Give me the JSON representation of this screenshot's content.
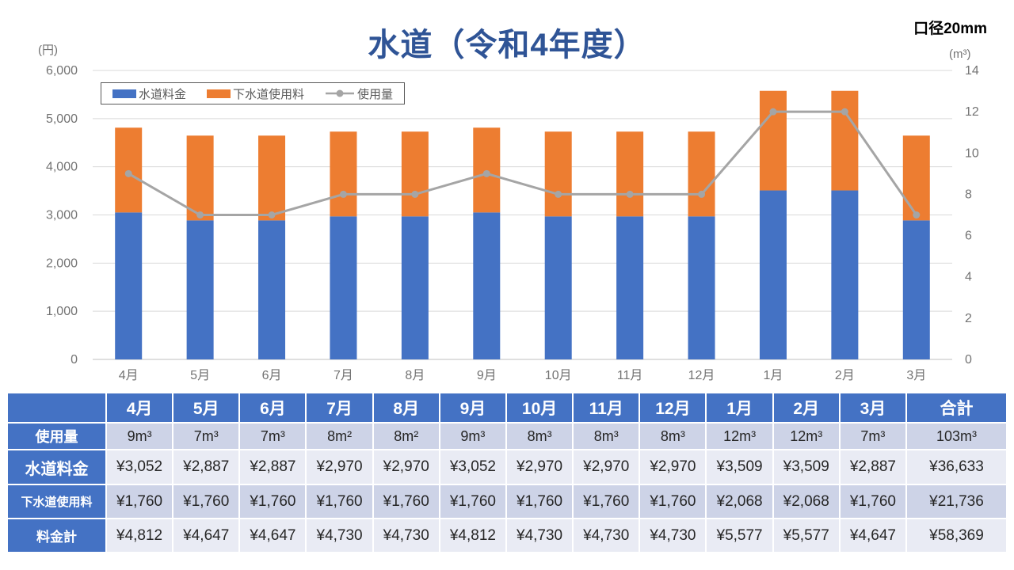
{
  "header": {
    "title": "水道（令和4年度）",
    "caliber_note": "口径20mm"
  },
  "chart_data": {
    "type": "bar",
    "subtype": "stacked-bars-with-line",
    "title": "水道（令和4年度）",
    "categories": [
      "4月",
      "5月",
      "6月",
      "7月",
      "8月",
      "9月",
      "10月",
      "11月",
      "12月",
      "1月",
      "2月",
      "3月"
    ],
    "series": [
      {
        "name": "水道料金",
        "type": "bar",
        "axis": "left",
        "color": "#4472C4",
        "values": [
          3052,
          2887,
          2887,
          2970,
          2970,
          3052,
          2970,
          2970,
          2970,
          3509,
          3509,
          2887
        ]
      },
      {
        "name": "下水道使用料",
        "type": "bar",
        "axis": "left",
        "color": "#ED7D31",
        "values": [
          1760,
          1760,
          1760,
          1760,
          1760,
          1760,
          1760,
          1760,
          1760,
          2068,
          2068,
          1760
        ]
      },
      {
        "name": "使用量",
        "type": "line",
        "axis": "right",
        "color": "#A5A5A5",
        "values": [
          9,
          7,
          7,
          8,
          8,
          9,
          8,
          8,
          8,
          12,
          12,
          7
        ]
      }
    ],
    "left_axis": {
      "unit_label": "(円)",
      "min": 0,
      "max": 6000,
      "step": 1000,
      "ticks": [
        "0",
        "1,000",
        "2,000",
        "3,000",
        "4,000",
        "5,000",
        "6,000"
      ]
    },
    "right_axis": {
      "unit_label": "(m³)",
      "min": 0,
      "max": 14,
      "step": 2,
      "ticks": [
        "0",
        "2",
        "4",
        "6",
        "8",
        "10",
        "12",
        "14"
      ]
    },
    "legend": {
      "position": "top-left-inside",
      "entries": [
        "水道料金",
        "下水道使用料",
        "使用量"
      ]
    },
    "grid": true
  },
  "table": {
    "corner_label": "",
    "columns": [
      "4月",
      "5月",
      "6月",
      "7月",
      "8月",
      "9月",
      "10月",
      "11月",
      "12月",
      "1月",
      "2月",
      "3月",
      "合計"
    ],
    "rows": [
      {
        "label": "使用量",
        "cells": [
          "9m³",
          "7m³",
          "7m³",
          "8m²",
          "8m²",
          "9m³",
          "8m³",
          "8m³",
          "8m³",
          "12m³",
          "12m³",
          "7m³",
          "103m³"
        ]
      },
      {
        "label": "水道料金",
        "cells": [
          "¥3,052",
          "¥2,887",
          "¥2,887",
          "¥2,970",
          "¥2,970",
          "¥3,052",
          "¥2,970",
          "¥2,970",
          "¥2,970",
          "¥3,509",
          "¥3,509",
          "¥2,887",
          "¥36,633"
        ]
      },
      {
        "label": "下水道使用料",
        "cells": [
          "¥1,760",
          "¥1,760",
          "¥1,760",
          "¥1,760",
          "¥1,760",
          "¥1,760",
          "¥1,760",
          "¥1,760",
          "¥1,760",
          "¥2,068",
          "¥2,068",
          "¥1,760",
          "¥21,736"
        ]
      },
      {
        "label": "料金計",
        "cells": [
          "¥4,812",
          "¥4,647",
          "¥4,647",
          "¥4,730",
          "¥4,730",
          "¥4,812",
          "¥4,730",
          "¥4,730",
          "¥4,730",
          "¥5,577",
          "¥5,577",
          "¥4,647",
          "¥58,369"
        ]
      }
    ]
  },
  "colors": {
    "title_text": "#2F5496",
    "bar_blue": "#4472C4",
    "bar_orange": "#ED7D31",
    "line_gray": "#A5A5A5",
    "gridline": "#D9D9D9",
    "axis_line": "#BFBFBF",
    "axis_text": "#737373",
    "table_header_bg": "#4472C4",
    "band_dark": "#CDD3E7",
    "band_light": "#E9EBF4"
  }
}
